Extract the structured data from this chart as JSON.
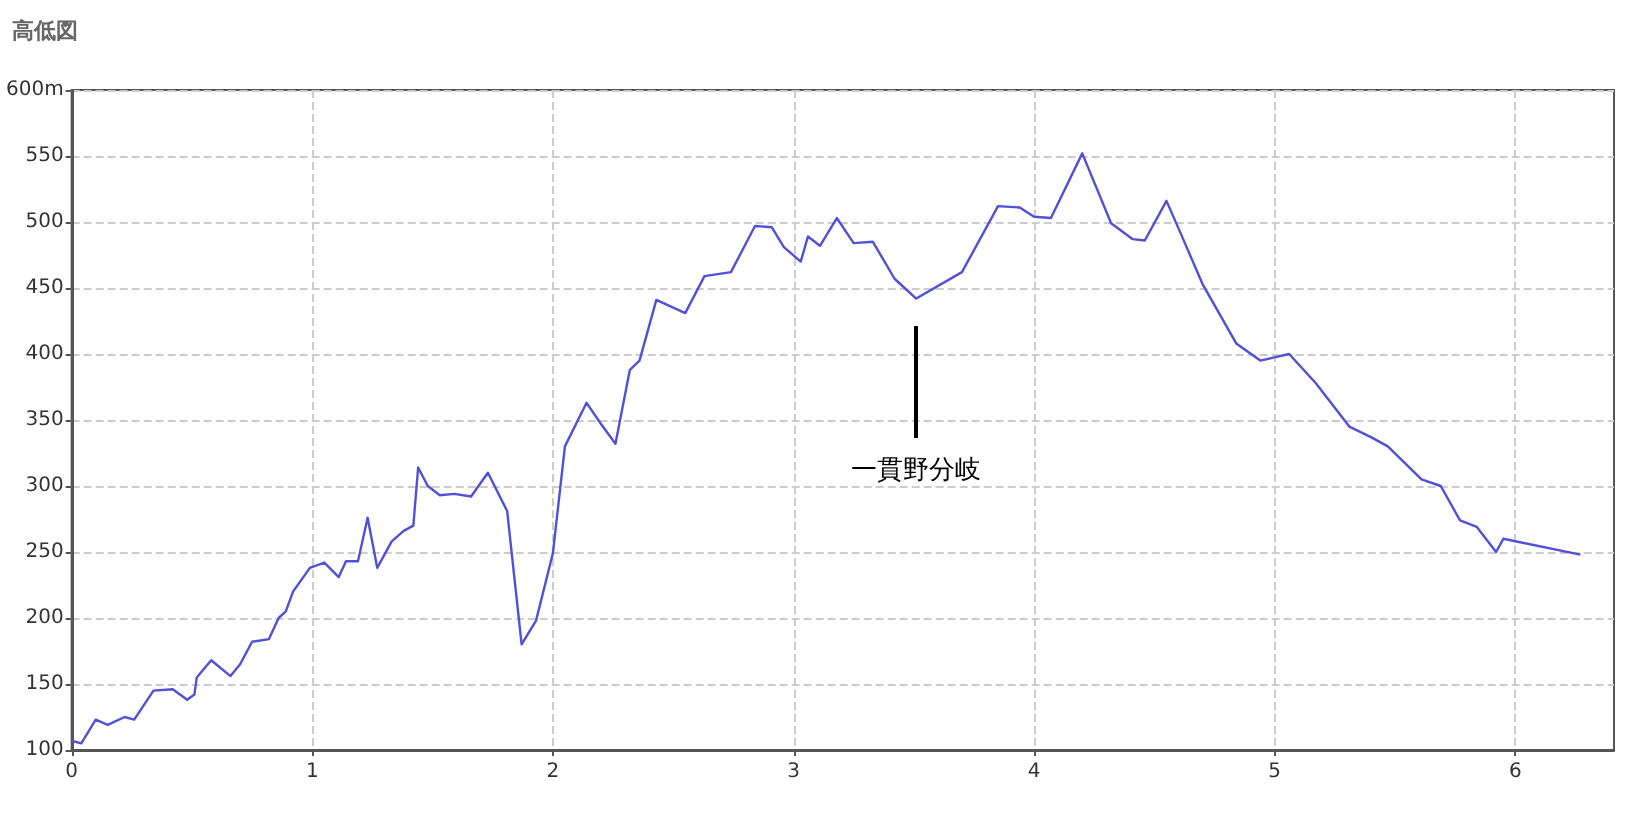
{
  "chart_data": {
    "type": "line",
    "title": "高低図",
    "x": [
      0,
      0.04,
      0.1,
      0.15,
      0.22,
      0.26,
      0.34,
      0.42,
      0.48,
      0.51,
      0.52,
      0.58,
      0.66,
      0.7,
      0.75,
      0.82,
      0.86,
      0.89,
      0.92,
      0.99,
      1.05,
      1.11,
      1.14,
      1.19,
      1.23,
      1.27,
      1.33,
      1.38,
      1.42,
      1.44,
      1.48,
      1.53,
      1.59,
      1.66,
      1.73,
      1.81,
      1.87,
      1.93,
      2.0,
      2.05,
      2.14,
      2.2,
      2.26,
      2.32,
      2.36,
      2.43,
      2.55,
      2.63,
      2.74,
      2.84,
      2.91,
      2.96,
      3.03,
      3.06,
      3.11,
      3.18,
      3.25,
      3.33,
      3.42,
      3.51,
      3.7,
      3.85,
      3.94,
      4.0,
      4.07,
      4.2,
      4.32,
      4.41,
      4.46,
      4.55,
      4.61,
      4.7,
      4.84,
      4.94,
      5.06,
      5.17,
      5.31,
      5.4,
      5.47,
      5.61,
      5.69,
      5.77,
      5.84,
      5.92,
      5.95,
      6.27
    ],
    "series": [
      {
        "color": "#5050d8",
        "values": [
          107,
          105,
          123,
          119,
          125,
          123,
          145,
          146,
          138,
          142,
          155,
          168,
          156,
          165,
          182,
          184,
          200,
          205,
          220,
          238,
          242,
          231,
          243,
          243,
          276,
          238,
          258,
          266,
          270,
          314,
          300,
          293,
          294,
          292,
          310,
          281,
          180,
          198,
          249,
          330,
          363,
          347,
          332,
          388,
          395,
          441,
          431,
          459,
          462,
          497,
          496,
          481,
          470,
          489,
          482,
          503,
          484,
          485,
          457,
          442,
          462,
          512,
          511,
          504,
          503,
          552,
          499,
          487,
          486,
          516,
          491,
          453,
          408,
          395,
          400,
          378,
          345,
          337,
          330,
          305,
          300,
          274,
          269,
          250,
          260,
          248
        ]
      }
    ],
    "xlim": [
      0,
      6.41
    ],
    "xticks": [
      0,
      1,
      2,
      3,
      4,
      5,
      6
    ],
    "ylim": [
      100,
      600
    ],
    "yticks": [
      100,
      150,
      200,
      250,
      300,
      350,
      400,
      450,
      500,
      550,
      {
        "value": 600,
        "label": "600m"
      }
    ],
    "grid": true,
    "marker": "none",
    "line_style": "solid",
    "annotations": [
      "一貫野分岐"
    ]
  }
}
